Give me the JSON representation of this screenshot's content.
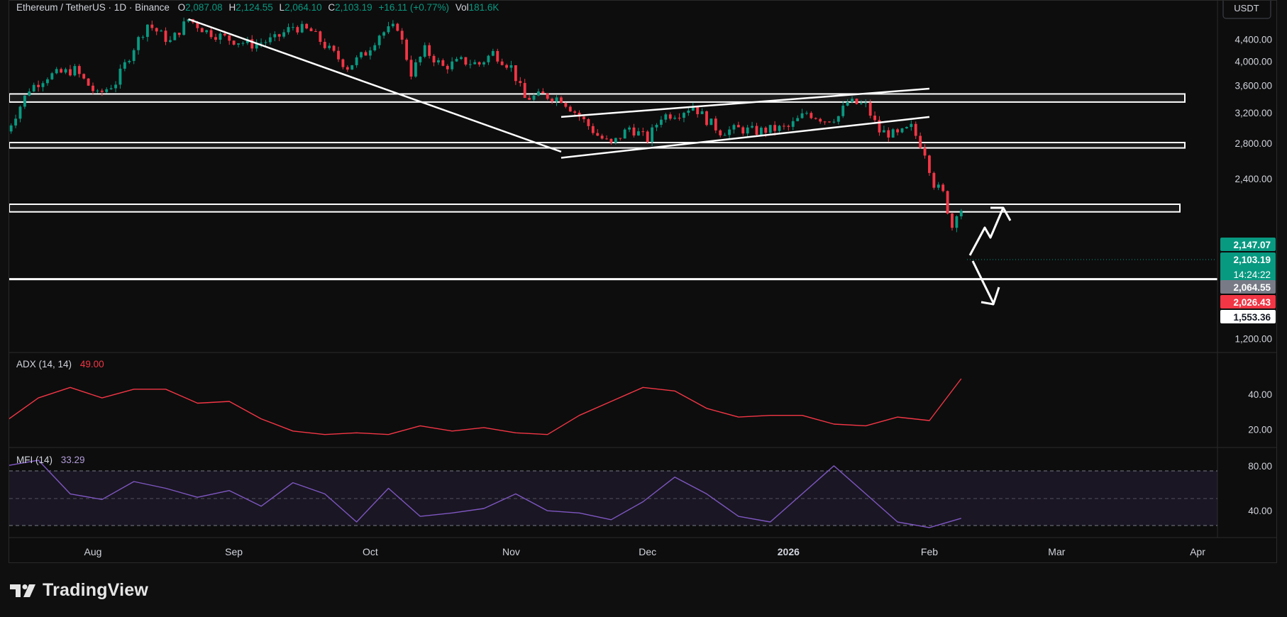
{
  "header": {
    "symbol": "Ethereum / TetherUS · 1D · Binance",
    "open_label": "O",
    "open": "2,087.08",
    "high_label": "H",
    "high": "2,124.55",
    "low_label": "L",
    "low": "2,064.10",
    "close_label": "C",
    "close": "2,103.19",
    "change": "+16.11 (+0.77%)",
    "vol_label": "Vol",
    "vol": "181.6K"
  },
  "currency_button": "USDT",
  "footer": {
    "brand": "TradingView",
    "logo_icon": "tradingview-logo-icon"
  },
  "colors": {
    "up": "#089981",
    "down": "#f23645",
    "adx": "#f23645",
    "mfi": "#7e57c2",
    "lines": "#ffffff",
    "bg": "#0d0d0d"
  },
  "chart_data": [
    {
      "type": "candlestick",
      "title": "Ethereum / TetherUS · 1D · Binance",
      "y_scale": "log",
      "ylim": [
        1130,
        5200
      ],
      "y_ticks": [
        {
          "value": 4400,
          "label": "4,400.00"
        },
        {
          "value": 4000,
          "label": "4,000.00"
        },
        {
          "value": 3600,
          "label": "3,600.00"
        },
        {
          "value": 3200,
          "label": "3,200.00"
        },
        {
          "value": 2800,
          "label": "2,800.00"
        },
        {
          "value": 2400,
          "label": "2,400.00"
        },
        {
          "value": 1200,
          "label": "1,200.00"
        }
      ],
      "x_ticks": [
        {
          "date": "2025-08-01",
          "label": "Aug",
          "bold": false
        },
        {
          "date": "2025-09-01",
          "label": "Sep",
          "bold": false
        },
        {
          "date": "2025-10-01",
          "label": "Oct",
          "bold": false
        },
        {
          "date": "2025-11-01",
          "label": "Nov",
          "bold": false
        },
        {
          "date": "2025-12-01",
          "label": "Dec",
          "bold": false
        },
        {
          "date": "2026-01-01",
          "label": "2026",
          "bold": true
        },
        {
          "date": "2026-02-01",
          "label": "Feb",
          "bold": false
        },
        {
          "date": "2026-03-01",
          "label": "Mar",
          "bold": false
        },
        {
          "date": "2026-04-01",
          "label": "Apr",
          "bold": false
        }
      ],
      "closes": [
        {
          "date": "2025-07-13",
          "close": 2950
        },
        {
          "date": "2025-07-18",
          "close": 3550
        },
        {
          "date": "2025-07-22",
          "close": 3750
        },
        {
          "date": "2025-07-28",
          "close": 3850
        },
        {
          "date": "2025-08-02",
          "close": 3450
        },
        {
          "date": "2025-08-06",
          "close": 3650
        },
        {
          "date": "2025-08-10",
          "close": 4250
        },
        {
          "date": "2025-08-13",
          "close": 4700
        },
        {
          "date": "2025-08-18",
          "close": 4350
        },
        {
          "date": "2025-08-22",
          "close": 4800
        },
        {
          "date": "2025-08-26",
          "close": 4550
        },
        {
          "date": "2025-08-31",
          "close": 4400
        },
        {
          "date": "2025-09-05",
          "close": 4300
        },
        {
          "date": "2025-09-10",
          "close": 4400
        },
        {
          "date": "2025-09-14",
          "close": 4650
        },
        {
          "date": "2025-09-18",
          "close": 4550
        },
        {
          "date": "2025-09-22",
          "close": 4200
        },
        {
          "date": "2025-09-26",
          "close": 3900
        },
        {
          "date": "2025-09-30",
          "close": 4150
        },
        {
          "date": "2025-10-03",
          "close": 4500
        },
        {
          "date": "2025-10-07",
          "close": 4650
        },
        {
          "date": "2025-10-10",
          "close": 3800
        },
        {
          "date": "2025-10-13",
          "close": 4200
        },
        {
          "date": "2025-10-17",
          "close": 3900
        },
        {
          "date": "2025-10-21",
          "close": 4000
        },
        {
          "date": "2025-10-25",
          "close": 3950
        },
        {
          "date": "2025-10-28",
          "close": 4150
        },
        {
          "date": "2025-11-01",
          "close": 3900
        },
        {
          "date": "2025-11-04",
          "close": 3400
        },
        {
          "date": "2025-11-08",
          "close": 3450
        },
        {
          "date": "2025-11-12",
          "close": 3400
        },
        {
          "date": "2025-11-16",
          "close": 3150
        },
        {
          "date": "2025-11-20",
          "close": 2900
        },
        {
          "date": "2025-11-23",
          "close": 2780
        },
        {
          "date": "2025-11-27",
          "close": 3000
        },
        {
          "date": "2025-12-01",
          "close": 2850
        },
        {
          "date": "2025-12-04",
          "close": 3150
        },
        {
          "date": "2025-12-08",
          "close": 3200
        },
        {
          "date": "2025-12-11",
          "close": 3300
        },
        {
          "date": "2025-12-14",
          "close": 3100
        },
        {
          "date": "2025-12-17",
          "close": 2950
        },
        {
          "date": "2025-12-21",
          "close": 2980
        },
        {
          "date": "2025-12-25",
          "close": 2950
        },
        {
          "date": "2025-12-29",
          "close": 2980
        },
        {
          "date": "2026-01-01",
          "close": 3000
        },
        {
          "date": "2026-01-05",
          "close": 3200
        },
        {
          "date": "2026-01-09",
          "close": 3100
        },
        {
          "date": "2026-01-12",
          "close": 3150
        },
        {
          "date": "2026-01-14",
          "close": 3350
        },
        {
          "date": "2026-01-18",
          "close": 3300
        },
        {
          "date": "2026-01-21",
          "close": 2950
        },
        {
          "date": "2026-01-25",
          "close": 2900
        },
        {
          "date": "2026-01-28",
          "close": 3000
        },
        {
          "date": "2026-01-31",
          "close": 2700
        },
        {
          "date": "2026-02-02",
          "close": 2350
        },
        {
          "date": "2026-02-04",
          "close": 2250
        },
        {
          "date": "2026-02-05",
          "close": 2100
        },
        {
          "date": "2026-02-06",
          "close": 1950
        },
        {
          "date": "2026-02-07",
          "close": 2087
        },
        {
          "date": "2026-02-08",
          "close": 2103.19
        }
      ],
      "zones": [
        {
          "from": 3350,
          "to": 3470
        },
        {
          "from": 2745,
          "to": 2810
        },
        {
          "from": 2080,
          "to": 2150
        }
      ],
      "support_line": 1553.36,
      "trendlines": [
        {
          "from": {
            "date": "2025-08-22",
            "price": 4800
          },
          "to": {
            "date": "2025-11-12",
            "price": 2700
          }
        },
        {
          "from": {
            "date": "2025-11-12",
            "price": 3140
          },
          "to": {
            "date": "2026-02-01",
            "price": 3550
          }
        },
        {
          "from": {
            "date": "2025-11-12",
            "price": 2630
          },
          "to": {
            "date": "2026-02-01",
            "price": 3140
          }
        }
      ],
      "price_labels": [
        {
          "value": 2147.07,
          "label": "2,147.07",
          "color": "#089981"
        },
        {
          "value": 2103.19,
          "label": "2,103.19",
          "color": "#089981",
          "countdown": "14:24:22"
        },
        {
          "value": 2064.55,
          "label": "2,064.55",
          "color": "#787b86"
        },
        {
          "value": 2026.43,
          "label": "2,026.43",
          "color": "#f23645"
        },
        {
          "value": 1553.36,
          "label": "1,553.36",
          "color": "#ffffff"
        }
      ]
    },
    {
      "type": "line",
      "name": "ADX (14, 14)",
      "last_value": "49.00",
      "ylim": [
        12,
        60
      ],
      "y_ticks": [
        {
          "value": 40,
          "label": "40.00"
        },
        {
          "value": 20,
          "label": "20.00"
        }
      ],
      "x": [
        "2025-07-13",
        "2025-07-20",
        "2025-07-27",
        "2025-08-03",
        "2025-08-10",
        "2025-08-17",
        "2025-08-24",
        "2025-08-31",
        "2025-09-07",
        "2025-09-14",
        "2025-09-21",
        "2025-09-28",
        "2025-10-05",
        "2025-10-12",
        "2025-10-19",
        "2025-10-26",
        "2025-11-02",
        "2025-11-09",
        "2025-11-16",
        "2025-11-23",
        "2025-11-30",
        "2025-12-07",
        "2025-12-14",
        "2025-12-21",
        "2025-12-28",
        "2026-01-04",
        "2026-01-11",
        "2026-01-18",
        "2026-01-25",
        "2026-02-01",
        "2026-02-08"
      ],
      "values": [
        25,
        38,
        44,
        38,
        43,
        43,
        35,
        36,
        26,
        19,
        17,
        18,
        17,
        22,
        19,
        21,
        18,
        17,
        28,
        36,
        44,
        42,
        32,
        27,
        28,
        28,
        23,
        22,
        27,
        25,
        49
      ]
    },
    {
      "type": "line",
      "name": "MFI (14)",
      "last_value": "33.29",
      "ylim": [
        18,
        90
      ],
      "bands": [
        80,
        50,
        20
      ],
      "y_ticks": [
        {
          "value": 80,
          "label": "80.00"
        },
        {
          "value": 40,
          "label": "40.00"
        }
      ],
      "x": [
        "2025-07-13",
        "2025-07-20",
        "2025-07-27",
        "2025-08-03",
        "2025-08-10",
        "2025-08-17",
        "2025-08-24",
        "2025-08-31",
        "2025-09-07",
        "2025-09-14",
        "2025-09-21",
        "2025-09-28",
        "2025-10-05",
        "2025-10-12",
        "2025-10-19",
        "2025-10-26",
        "2025-11-02",
        "2025-11-09",
        "2025-11-16",
        "2025-11-23",
        "2025-11-30",
        "2025-12-07",
        "2025-12-14",
        "2025-12-21",
        "2025-12-28",
        "2026-01-04",
        "2026-01-11",
        "2026-01-18",
        "2026-01-25",
        "2026-02-01",
        "2026-02-08"
      ],
      "values": [
        80,
        85,
        55,
        50,
        66,
        60,
        52,
        58,
        44,
        65,
        55,
        30,
        60,
        35,
        38,
        42,
        55,
        40,
        38,
        32,
        48,
        70,
        55,
        35,
        30,
        55,
        80,
        55,
        30,
        25,
        33.29
      ]
    }
  ]
}
